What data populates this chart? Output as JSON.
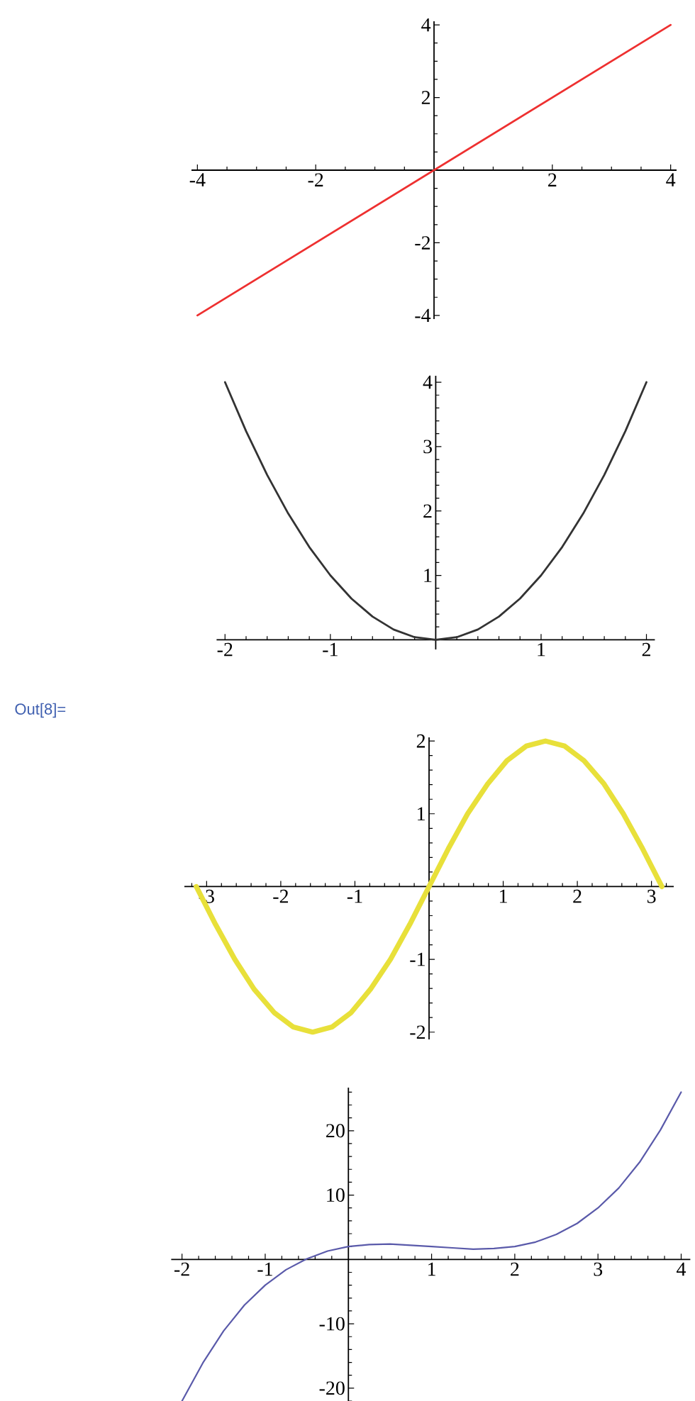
{
  "chart_data": [
    {
      "type": "line",
      "x": [
        -4,
        4
      ],
      "values": [
        -4,
        4
      ],
      "color": "#ee3030",
      "xlim": [
        -4.1,
        4.1
      ],
      "ylim": [
        -4.1,
        4.1
      ],
      "xticks": [
        -4,
        {
          "value": -3.5,
          "label": null
        },
        {
          "value": -3,
          "label": null
        },
        {
          "value": -2.5,
          "label": null
        },
        -2,
        {
          "value": -1.5,
          "label": null
        },
        {
          "value": -1,
          "label": null
        },
        {
          "value": -0.5,
          "label": null
        },
        {
          "value": 0.5,
          "label": null
        },
        {
          "value": 1,
          "label": null
        },
        {
          "value": 1.5,
          "label": null
        },
        2,
        {
          "value": 2.5,
          "label": null
        },
        {
          "value": 3,
          "label": null
        },
        {
          "value": 3.5,
          "label": null
        },
        4
      ],
      "yticks": [
        -4,
        {
          "value": -3.5,
          "label": null
        },
        {
          "value": -3,
          "label": null
        },
        {
          "value": -2.5,
          "label": null
        },
        -2,
        {
          "value": -1.5,
          "label": null
        },
        {
          "value": -1,
          "label": null
        },
        {
          "value": -0.5,
          "label": null
        },
        {
          "value": 0.5,
          "label": null
        },
        {
          "value": 1,
          "label": null
        },
        {
          "value": 1.5,
          "label": null
        },
        2,
        {
          "value": 2.5,
          "label": null
        },
        {
          "value": 3,
          "label": null
        },
        {
          "value": 3.5,
          "label": null
        },
        4
      ]
    },
    {
      "type": "line",
      "x": [
        -2,
        -1.8,
        -1.6,
        -1.4,
        -1.2,
        -1,
        -0.8,
        -0.6,
        -0.4,
        -0.2,
        0,
        0.2,
        0.4,
        0.6,
        0.8,
        1,
        1.2,
        1.4,
        1.6,
        1.8,
        2
      ],
      "values": [
        4,
        3.24,
        2.56,
        1.96,
        1.44,
        1,
        0.64,
        0.36,
        0.16,
        0.04,
        0,
        0.04,
        0.16,
        0.36,
        0.64,
        1,
        1.44,
        1.96,
        2.56,
        3.24,
        4
      ],
      "color": "#333333",
      "xlim": [
        -2.08,
        2.08
      ],
      "ylim": [
        -0.15,
        4.1
      ],
      "xticks": [
        -2,
        {
          "value": -1.8,
          "label": null
        },
        {
          "value": -1.6,
          "label": null
        },
        {
          "value": -1.4,
          "label": null
        },
        {
          "value": -1.2,
          "label": null
        },
        -1,
        {
          "value": -0.8,
          "label": null
        },
        {
          "value": -0.6,
          "label": null
        },
        {
          "value": -0.4,
          "label": null
        },
        {
          "value": -0.2,
          "label": null
        },
        {
          "value": 0.2,
          "label": null
        },
        {
          "value": 0.4,
          "label": null
        },
        {
          "value": 0.6,
          "label": null
        },
        {
          "value": 0.8,
          "label": null
        },
        1,
        {
          "value": 1.2,
          "label": null
        },
        {
          "value": 1.4,
          "label": null
        },
        {
          "value": 1.6,
          "label": null
        },
        {
          "value": 1.8,
          "label": null
        },
        2
      ],
      "yticks": [
        {
          "value": 0.2,
          "label": null
        },
        {
          "value": 0.4,
          "label": null
        },
        {
          "value": 0.6,
          "label": null
        },
        {
          "value": 0.8,
          "label": null
        },
        1,
        {
          "value": 1.2,
          "label": null
        },
        {
          "value": 1.4,
          "label": null
        },
        {
          "value": 1.6,
          "label": null
        },
        {
          "value": 1.8,
          "label": null
        },
        2,
        {
          "value": 2.2,
          "label": null
        },
        {
          "value": 2.4,
          "label": null
        },
        {
          "value": 2.6,
          "label": null
        },
        {
          "value": 2.8,
          "label": null
        },
        3,
        {
          "value": 3.2,
          "label": null
        },
        {
          "value": 3.4,
          "label": null
        },
        {
          "value": 3.6,
          "label": null
        },
        {
          "value": 3.8,
          "label": null
        },
        4
      ]
    },
    {
      "type": "line",
      "x": [
        -3.14,
        -2.88,
        -2.62,
        -2.36,
        -2.09,
        -1.83,
        -1.57,
        -1.31,
        -1.05,
        -0.79,
        -0.52,
        -0.26,
        0,
        0.26,
        0.52,
        0.79,
        1.05,
        1.31,
        1.57,
        1.83,
        2.09,
        2.36,
        2.62,
        2.88,
        3.14
      ],
      "values": [
        0,
        -0.52,
        -1,
        -1.41,
        -1.73,
        -1.93,
        -2,
        -1.93,
        -1.73,
        -1.41,
        -1,
        -0.52,
        0,
        0.52,
        1,
        1.41,
        1.73,
        1.93,
        2,
        1.93,
        1.73,
        1.41,
        1,
        0.52,
        0
      ],
      "color": "#e8e03a",
      "xlim": [
        -3.3,
        3.3
      ],
      "ylim": [
        -2.1,
        2.05
      ],
      "xticks": [
        {
          "value": -3.2,
          "label": null
        },
        -3,
        {
          "value": -2.8,
          "label": null
        },
        {
          "value": -2.6,
          "label": null
        },
        {
          "value": -2.4,
          "label": null
        },
        {
          "value": -2.2,
          "label": null
        },
        -2,
        {
          "value": -1.8,
          "label": null
        },
        {
          "value": -1.6,
          "label": null
        },
        {
          "value": -1.4,
          "label": null
        },
        {
          "value": -1.2,
          "label": null
        },
        -1,
        {
          "value": -0.8,
          "label": null
        },
        {
          "value": -0.6,
          "label": null
        },
        {
          "value": -0.4,
          "label": null
        },
        {
          "value": -0.2,
          "label": null
        },
        {
          "value": 0.2,
          "label": null
        },
        {
          "value": 0.4,
          "label": null
        },
        {
          "value": 0.6,
          "label": null
        },
        {
          "value": 0.8,
          "label": null
        },
        1,
        {
          "value": 1.2,
          "label": null
        },
        {
          "value": 1.4,
          "label": null
        },
        {
          "value": 1.6,
          "label": null
        },
        {
          "value": 1.8,
          "label": null
        },
        2,
        {
          "value": 2.2,
          "label": null
        },
        {
          "value": 2.4,
          "label": null
        },
        {
          "value": 2.6,
          "label": null
        },
        {
          "value": 2.8,
          "label": null
        },
        3,
        {
          "value": 3.2,
          "label": null
        }
      ],
      "yticks": [
        -2,
        {
          "value": -1.8,
          "label": null
        },
        {
          "value": -1.6,
          "label": null
        },
        {
          "value": -1.4,
          "label": null
        },
        {
          "value": -1.2,
          "label": null
        },
        -1,
        {
          "value": -0.8,
          "label": null
        },
        {
          "value": -0.6,
          "label": null
        },
        {
          "value": -0.4,
          "label": null
        },
        {
          "value": -0.2,
          "label": null
        },
        {
          "value": 0.2,
          "label": null
        },
        {
          "value": 0.4,
          "label": null
        },
        {
          "value": 0.6,
          "label": null
        },
        {
          "value": 0.8,
          "label": null
        },
        1,
        {
          "value": 1.2,
          "label": null
        },
        {
          "value": 1.4,
          "label": null
        },
        {
          "value": 1.6,
          "label": null
        },
        {
          "value": 1.8,
          "label": null
        },
        2
      ],
      "annotations": [
        "Out[8]="
      ]
    },
    {
      "type": "line",
      "x": [
        -2,
        -1.75,
        -1.5,
        -1.25,
        -1,
        -0.75,
        -0.5,
        -0.25,
        0,
        0.25,
        0.5,
        0.75,
        1,
        1.25,
        1.5,
        1.75,
        2,
        2.25,
        2.5,
        2.75,
        3,
        3.25,
        3.5,
        3.75,
        4
      ],
      "values": [
        -22,
        -16.1,
        -11.1,
        -7.1,
        -4,
        -1.6,
        0.1,
        1.3,
        2,
        2.3,
        2.4,
        2.2,
        2,
        1.8,
        1.6,
        1.7,
        2,
        2.7,
        3.9,
        5.6,
        8,
        11.1,
        15.1,
        20.1,
        26
      ],
      "color": "#5a5aaa",
      "xlim": [
        -2.13,
        4.11
      ],
      "ylim": [
        -22,
        26.7
      ],
      "xticks": [
        -2,
        {
          "value": -1.8,
          "label": null
        },
        {
          "value": -1.6,
          "label": null
        },
        {
          "value": -1.4,
          "label": null
        },
        {
          "value": -1.2,
          "label": null
        },
        -1,
        {
          "value": -0.8,
          "label": null
        },
        {
          "value": -0.6,
          "label": null
        },
        {
          "value": -0.4,
          "label": null
        },
        {
          "value": -0.2,
          "label": null
        },
        {
          "value": 0.2,
          "label": null
        },
        {
          "value": 0.4,
          "label": null
        },
        {
          "value": 0.6,
          "label": null
        },
        {
          "value": 0.8,
          "label": null
        },
        1,
        {
          "value": 1.2,
          "label": null
        },
        {
          "value": 1.4,
          "label": null
        },
        {
          "value": 1.6,
          "label": null
        },
        {
          "value": 1.8,
          "label": null
        },
        2,
        {
          "value": 2.2,
          "label": null
        },
        {
          "value": 2.4,
          "label": null
        },
        {
          "value": 2.6,
          "label": null
        },
        {
          "value": 2.8,
          "label": null
        },
        3,
        {
          "value": 3.2,
          "label": null
        },
        {
          "value": 3.4,
          "label": null
        },
        {
          "value": 3.6,
          "label": null
        },
        {
          "value": 3.8,
          "label": null
        },
        4
      ],
      "yticks": [
        {
          "value": -22,
          "label": null
        },
        -20,
        {
          "value": -18,
          "label": null
        },
        {
          "value": -16,
          "label": null
        },
        {
          "value": -14,
          "label": null
        },
        {
          "value": -12,
          "label": null
        },
        -10,
        {
          "value": -8,
          "label": null
        },
        {
          "value": -6,
          "label": null
        },
        {
          "value": -4,
          "label": null
        },
        {
          "value": -2,
          "label": null
        },
        {
          "value": 2,
          "label": null
        },
        {
          "value": 4,
          "label": null
        },
        {
          "value": 6,
          "label": null
        },
        {
          "value": 8,
          "label": null
        },
        10,
        {
          "value": 12,
          "label": null
        },
        {
          "value": 14,
          "label": null
        },
        {
          "value": 16,
          "label": null
        },
        {
          "value": 18,
          "label": null
        },
        20,
        {
          "value": 22,
          "label": null
        },
        {
          "value": 24,
          "label": null
        },
        {
          "value": 26,
          "label": null
        }
      ]
    }
  ]
}
